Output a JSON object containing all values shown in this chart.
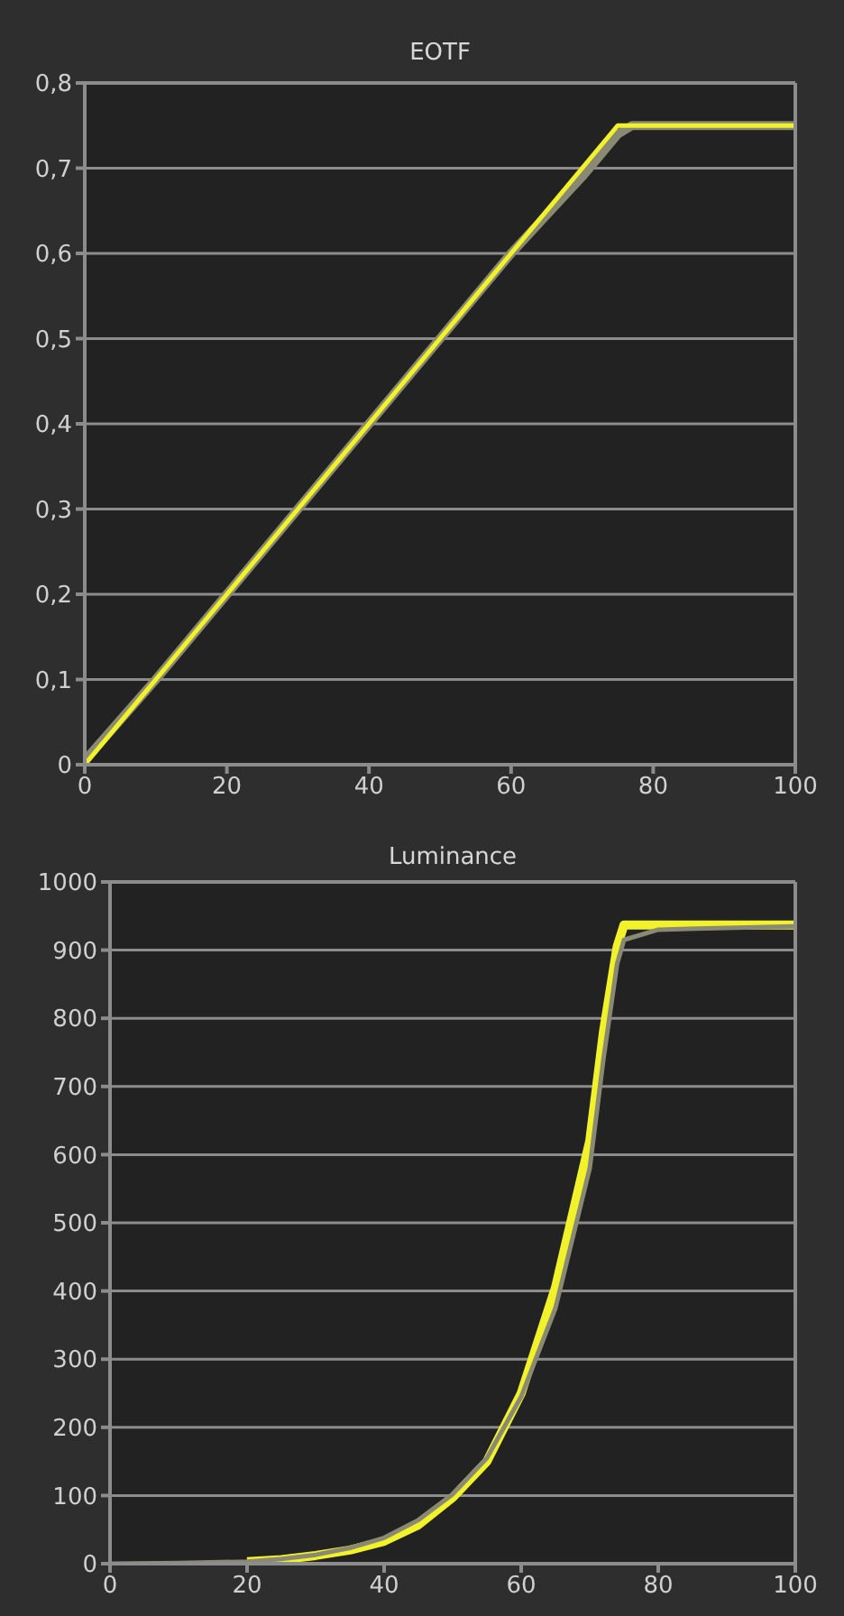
{
  "chart_data": [
    {
      "type": "line",
      "title": "EOTF",
      "xlim": [
        0,
        100
      ],
      "xticks": [
        0,
        20,
        40,
        60,
        80,
        100
      ],
      "ylim": [
        0,
        0.8
      ],
      "yticks": [
        {
          "value": 0,
          "label": "0"
        },
        {
          "value": 0.1,
          "label": "0,1"
        },
        {
          "value": 0.2,
          "label": "0,2"
        },
        {
          "value": 0.3,
          "label": "0,3"
        },
        {
          "value": 0.4,
          "label": "0,4"
        },
        {
          "value": 0.5,
          "label": "0,5"
        },
        {
          "value": 0.6,
          "label": "0,6"
        },
        {
          "value": 0.7,
          "label": "0,7"
        },
        {
          "value": 0.8,
          "label": "0,8"
        }
      ],
      "grid": "y",
      "marker": "none",
      "series": [
        {
          "color": "#8a8a74",
          "x": [
            0,
            10,
            20,
            30,
            40,
            50,
            60,
            65,
            70,
            75,
            77,
            100
          ],
          "values": [
            0.005,
            0.1,
            0.2,
            0.3,
            0.4,
            0.5,
            0.6,
            0.645,
            0.69,
            0.74,
            0.75,
            0.75
          ]
        },
        {
          "color": "#f2f22a",
          "x": [
            0,
            10,
            20,
            30,
            40,
            50,
            60,
            70,
            75,
            76,
            100
          ],
          "values": [
            0,
            0.1,
            0.2,
            0.3,
            0.4,
            0.5,
            0.6,
            0.7,
            0.75,
            0.75,
            0.75
          ]
        }
      ]
    },
    {
      "type": "line",
      "title": "Luminance",
      "xlim": [
        0,
        100
      ],
      "xticks": [
        0,
        20,
        40,
        60,
        80,
        100
      ],
      "ylim": [
        0,
        1000
      ],
      "yticks": [
        0,
        100,
        200,
        300,
        400,
        500,
        600,
        700,
        800,
        900,
        1000
      ],
      "grid": "y",
      "marker": "none",
      "series": [
        {
          "color": "#f2f22a",
          "x": [
            20,
            25,
            30,
            35,
            40,
            45,
            50,
            55,
            60,
            65,
            70,
            72,
            74,
            75,
            100
          ],
          "values": [
            3,
            6,
            12,
            20,
            33,
            57,
            97,
            150,
            250,
            405,
            620,
            780,
            905,
            937,
            937
          ]
        },
        {
          "color": "#8a8a74",
          "x": [
            0,
            10,
            20,
            25,
            30,
            35,
            40,
            45,
            50,
            55,
            60,
            65,
            70,
            72,
            74,
            75,
            80,
            100
          ],
          "values": [
            0,
            1,
            3,
            7,
            13,
            23,
            38,
            64,
            102,
            155,
            245,
            375,
            580,
            740,
            880,
            915,
            930,
            935
          ]
        }
      ]
    }
  ]
}
